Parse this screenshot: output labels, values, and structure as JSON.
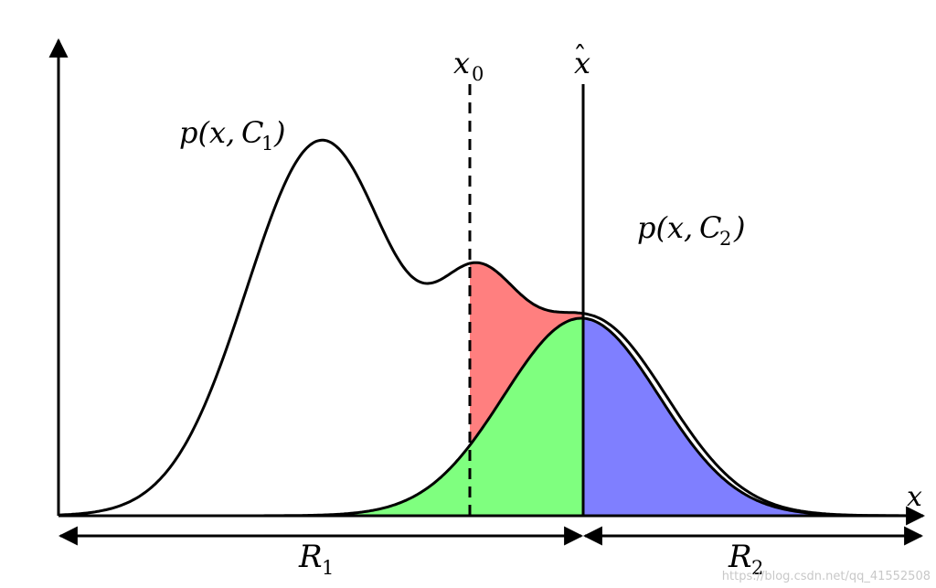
{
  "labels": {
    "x_axis": "x",
    "x0": "x",
    "x0_sub": "0",
    "xhat": "x",
    "xhat_hat": "ˆ",
    "curve1_fn": "p(x,",
    "curve1_cal": "C",
    "curve1_sub": "1",
    "curve1_close": ")",
    "curve2_fn": "p(x,",
    "curve2_cal": "C",
    "curve2_sub": "2",
    "curve2_close": ")",
    "region1_cal": "R",
    "region1_sub": "1",
    "region2_cal": "R",
    "region2_sub": "2"
  },
  "watermark": "https://blog.csdn.net/qq_41552508",
  "colors": {
    "error_red": "#ff7f7f",
    "correct_green": "#7fff7f",
    "error_blue": "#7f7fff",
    "line": "#000000"
  }
}
